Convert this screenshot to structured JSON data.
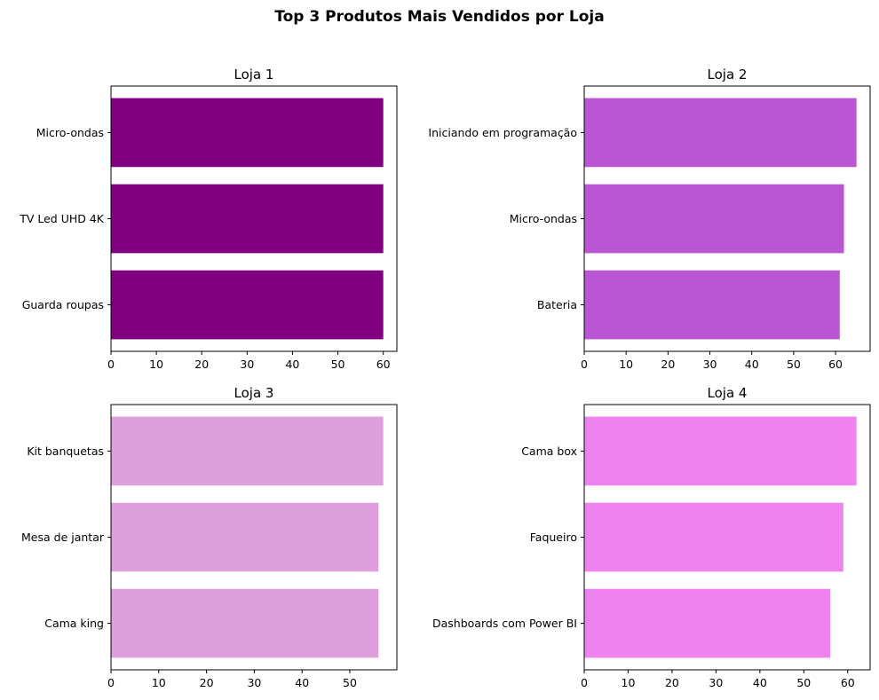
{
  "figure": {
    "title": "Top 3 Produtos Mais Vendidos por Loja"
  },
  "chart_data": [
    {
      "type": "bar",
      "orientation": "horizontal",
      "title": "Loja 1",
      "color": "#800080",
      "categories": [
        "Micro-ondas",
        "TV Led UHD 4K",
        "Guarda roupas"
      ],
      "values": [
        60,
        60,
        60
      ],
      "xlim": [
        0,
        63
      ],
      "xticks": [
        0,
        10,
        20,
        30,
        40,
        50,
        60
      ]
    },
    {
      "type": "bar",
      "orientation": "horizontal",
      "title": "Loja 2",
      "color": "#BA55D3",
      "categories": [
        "Iniciando em programação",
        "Micro-ondas",
        "Bateria"
      ],
      "values": [
        65,
        62,
        61
      ],
      "xlim": [
        0,
        68.25
      ],
      "xticks": [
        0,
        10,
        20,
        30,
        40,
        50,
        60
      ]
    },
    {
      "type": "bar",
      "orientation": "horizontal",
      "title": "Loja 3",
      "color": "#DDA0DD",
      "categories": [
        "Kit banquetas",
        "Mesa de jantar",
        "Cama king"
      ],
      "values": [
        57,
        56,
        56
      ],
      "xlim": [
        0,
        59.85
      ],
      "xticks": [
        0,
        10,
        20,
        30,
        40,
        50
      ]
    },
    {
      "type": "bar",
      "orientation": "horizontal",
      "title": "Loja 4",
      "color": "#EE82EE",
      "categories": [
        "Cama box",
        "Faqueiro",
        "Dashboards com Power BI"
      ],
      "values": [
        62,
        59,
        56
      ],
      "xlim": [
        0,
        65.1
      ],
      "xticks": [
        0,
        10,
        20,
        30,
        40,
        50,
        60
      ]
    }
  ]
}
